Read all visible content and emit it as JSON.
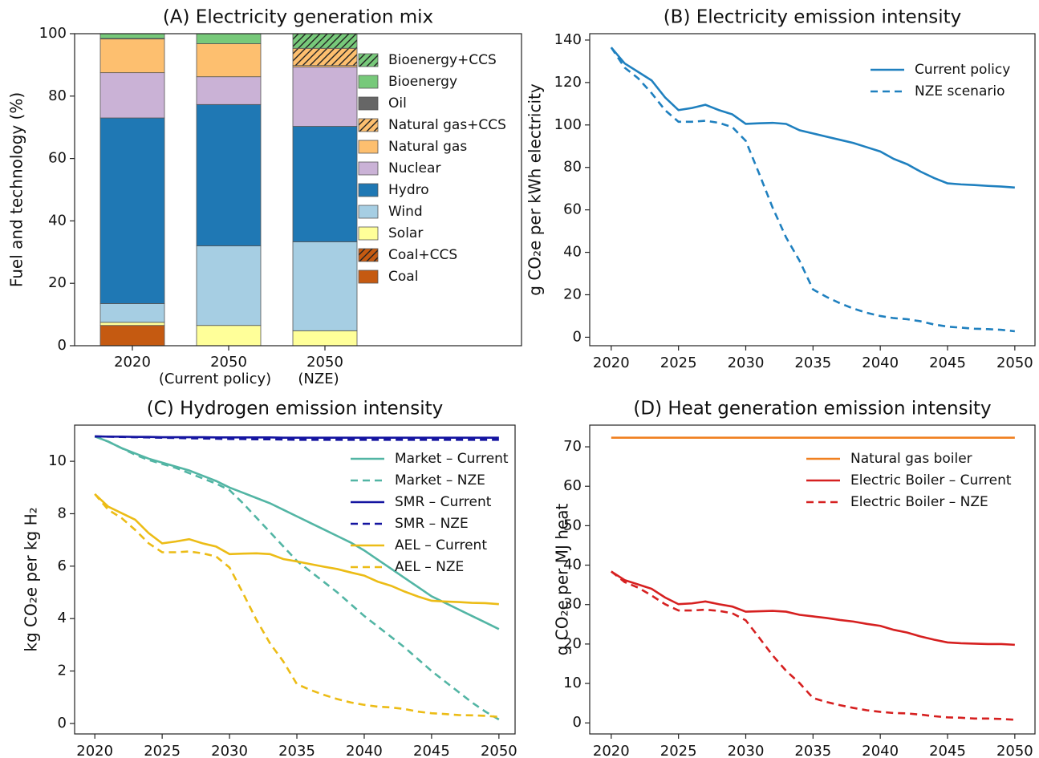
{
  "chart_data": [
    {
      "type": "bar",
      "title": "(A) Electricity generation mix",
      "ylabel": "Fuel and technology (%)",
      "categories": [
        "2020",
        "2050",
        "2050"
      ],
      "category_notes": [
        null,
        "(Current policy)",
        "(NZE)"
      ],
      "ylim": [
        0,
        100
      ],
      "yticks": [
        0,
        20,
        40,
        60,
        80,
        100
      ],
      "series": [
        {
          "name": "Coal",
          "color": "#c55a11",
          "values": [
            6.5,
            0,
            0
          ]
        },
        {
          "name": "Coal+CCS",
          "color": "#c55a11",
          "hatch": "//",
          "values": [
            0,
            0,
            0
          ]
        },
        {
          "name": "Solar",
          "color": "#ffff99",
          "values": [
            1,
            6.5,
            4.8
          ]
        },
        {
          "name": "Wind",
          "color": "#a6cee3",
          "values": [
            6,
            25.5,
            28.5
          ]
        },
        {
          "name": "Hydro",
          "color": "#1f78b4",
          "values": [
            59.5,
            45.3,
            37
          ]
        },
        {
          "name": "Nuclear",
          "color": "#cab2d6",
          "values": [
            14.5,
            8.9,
            19
          ]
        },
        {
          "name": "Natural gas",
          "color": "#fdbf6f",
          "values": [
            10.8,
            10.6,
            0.5
          ]
        },
        {
          "name": "Natural gas+CCS",
          "color": "#fdbf6f",
          "hatch": "//",
          "values": [
            0,
            0,
            5.5
          ]
        },
        {
          "name": "Oil",
          "color": "#666666",
          "values": [
            0.2,
            0,
            0
          ]
        },
        {
          "name": "Bioenergy",
          "color": "#77c97a",
          "values": [
            1.5,
            3.2,
            0
          ]
        },
        {
          "name": "Bioenergy+CCS",
          "color": "#77c97a",
          "hatch": "//",
          "values": [
            0,
            0,
            4.7
          ]
        }
      ]
    },
    {
      "type": "line",
      "title": "(B) Electricity emission intensity",
      "ylabel": "g CO₂e per kWh electricity",
      "x": [
        2020,
        2021,
        2022,
        2023,
        2024,
        2025,
        2026,
        2027,
        2028,
        2029,
        2030,
        2031,
        2032,
        2033,
        2034,
        2035,
        2036,
        2037,
        2038,
        2039,
        2040,
        2041,
        2042,
        2043,
        2044,
        2045,
        2046,
        2047,
        2048,
        2049,
        2050
      ],
      "xlim": [
        2018.4,
        2051.5
      ],
      "xticks": [
        2020,
        2025,
        2030,
        2035,
        2040,
        2045,
        2050
      ],
      "ylim": [
        -4,
        143
      ],
      "yticks": [
        0,
        20,
        40,
        60,
        80,
        100,
        120,
        140
      ],
      "series": [
        {
          "name": "Current policy",
          "color": "#1f80bf",
          "style": "solid",
          "values": [
            136.5,
            129,
            125,
            121,
            113,
            107,
            108,
            109.5,
            107,
            105,
            100.5,
            100.8,
            101,
            100.5,
            97.5,
            96,
            94.5,
            93,
            91.5,
            89.5,
            87.5,
            84,
            81.5,
            78,
            75,
            72.5,
            72,
            71.7,
            71.3,
            71,
            70.5
          ]
        },
        {
          "name": "NZE scenario",
          "color": "#1f80bf",
          "style": "dashed",
          "values": [
            136.5,
            127,
            122,
            115,
            107,
            101.5,
            101.5,
            102,
            101,
            99,
            92.5,
            77,
            61,
            47,
            36,
            22.5,
            19,
            16,
            13.5,
            11.5,
            10,
            9,
            8.5,
            7.5,
            6,
            5,
            4.5,
            4,
            3.8,
            3.5,
            2.8
          ]
        }
      ]
    },
    {
      "type": "line",
      "title": "(C) Hydrogen emission intensity",
      "ylabel": "kg CO₂e per kg H₂",
      "x": [
        2020,
        2021,
        2022,
        2023,
        2024,
        2025,
        2026,
        2027,
        2028,
        2029,
        2030,
        2031,
        2032,
        2033,
        2034,
        2035,
        2036,
        2037,
        2038,
        2039,
        2040,
        2041,
        2042,
        2043,
        2044,
        2045,
        2046,
        2047,
        2048,
        2049,
        2050
      ],
      "xlim": [
        2018.5,
        2051.2
      ],
      "xticks": [
        2020,
        2025,
        2030,
        2035,
        2040,
        2045,
        2050
      ],
      "ylim": [
        -0.4,
        11.38
      ],
      "yticks": [
        0,
        2,
        4,
        6,
        8,
        10
      ],
      "series": [
        {
          "name": "Market – Current",
          "color": "#52b5a4",
          "style": "solid",
          "values": [
            10.95,
            10.75,
            10.5,
            10.3,
            10.1,
            9.95,
            9.8,
            9.65,
            9.45,
            9.25,
            9.0,
            8.8,
            8.6,
            8.4,
            8.15,
            7.9,
            7.65,
            7.4,
            7.15,
            6.9,
            6.6,
            6.25,
            5.9,
            5.55,
            5.2,
            4.85,
            4.6,
            4.35,
            4.1,
            3.85,
            3.6
          ]
        },
        {
          "name": "Market – NZE",
          "color": "#52b5a4",
          "style": "dashed",
          "values": [
            10.95,
            10.75,
            10.5,
            10.25,
            10.05,
            9.9,
            9.75,
            9.55,
            9.35,
            9.15,
            8.9,
            8.4,
            7.85,
            7.3,
            6.75,
            6.2,
            5.8,
            5.4,
            5.0,
            4.55,
            4.1,
            3.7,
            3.3,
            2.9,
            2.45,
            2.0,
            1.6,
            1.2,
            0.8,
            0.45,
            0.15
          ]
        },
        {
          "name": "SMR – Current",
          "color": "#1414a0",
          "style": "solid",
          "values": [
            10.95,
            10.94,
            10.94,
            10.93,
            10.93,
            10.92,
            10.92,
            10.92,
            10.92,
            10.91,
            10.91,
            10.91,
            10.91,
            10.91,
            10.9,
            10.9,
            10.9,
            10.9,
            10.9,
            10.9,
            10.9,
            10.9,
            10.9,
            10.9,
            10.9,
            10.9,
            10.9,
            10.9,
            10.9,
            10.9,
            10.9
          ]
        },
        {
          "name": "SMR – NZE",
          "color": "#1414a0",
          "style": "dashed",
          "values": [
            10.95,
            10.94,
            10.93,
            10.92,
            10.91,
            10.9,
            10.89,
            10.88,
            10.87,
            10.86,
            10.85,
            10.85,
            10.84,
            10.84,
            10.83,
            10.82,
            10.82,
            10.82,
            10.82,
            10.82,
            10.82,
            10.82,
            10.82,
            10.82,
            10.82,
            10.82,
            10.82,
            10.82,
            10.82,
            10.82,
            10.82
          ]
        },
        {
          "name": "AEL – Current",
          "color": "#ecbc16",
          "style": "solid",
          "values": [
            8.75,
            8.27,
            8.02,
            7.77,
            7.26,
            6.87,
            6.94,
            7.03,
            6.87,
            6.75,
            6.46,
            6.48,
            6.49,
            6.46,
            6.27,
            6.18,
            6.08,
            5.98,
            5.89,
            5.76,
            5.64,
            5.41,
            5.25,
            5.03,
            4.84,
            4.68,
            4.65,
            4.63,
            4.6,
            4.59,
            4.55
          ]
        },
        {
          "name": "AEL – NZE",
          "color": "#ecbc16",
          "style": "dashed",
          "values": [
            8.75,
            8.15,
            7.83,
            7.38,
            6.87,
            6.53,
            6.53,
            6.56,
            6.49,
            6.37,
            5.95,
            4.97,
            3.95,
            3.06,
            2.36,
            1.5,
            1.28,
            1.09,
            0.93,
            0.8,
            0.71,
            0.64,
            0.61,
            0.55,
            0.45,
            0.39,
            0.36,
            0.32,
            0.31,
            0.29,
            0.25
          ]
        }
      ]
    },
    {
      "type": "line",
      "title": "(D) Heat generation emission intensity",
      "ylabel": "g CO₂e per MJ heat",
      "x": [
        2020,
        2021,
        2022,
        2023,
        2024,
        2025,
        2026,
        2027,
        2028,
        2029,
        2030,
        2031,
        2032,
        2033,
        2034,
        2035,
        2036,
        2037,
        2038,
        2039,
        2040,
        2041,
        2042,
        2043,
        2044,
        2045,
        2046,
        2047,
        2048,
        2049,
        2050
      ],
      "xlim": [
        2018.4,
        2051.5
      ],
      "xticks": [
        2020,
        2025,
        2030,
        2035,
        2040,
        2045,
        2050
      ],
      "ylim": [
        -2.8,
        75.5
      ],
      "yticks": [
        0,
        10,
        20,
        30,
        40,
        50,
        60,
        70
      ],
      "series": [
        {
          "name": "Natural gas boiler",
          "color": "#f08020",
          "style": "solid",
          "values": [
            72.3,
            72.3,
            72.3,
            72.3,
            72.3,
            72.3,
            72.3,
            72.3,
            72.3,
            72.3,
            72.3,
            72.3,
            72.3,
            72.3,
            72.3,
            72.3,
            72.3,
            72.3,
            72.3,
            72.3,
            72.3,
            72.3,
            72.3,
            72.3,
            72.3,
            72.3,
            72.3,
            72.3,
            72.3,
            72.3,
            72.3
          ]
        },
        {
          "name": "Electric Boiler – Current",
          "color": "#d62020",
          "style": "solid",
          "values": [
            38.4,
            36.2,
            35.1,
            34.0,
            31.8,
            30.1,
            30.3,
            30.8,
            30.1,
            29.5,
            28.2,
            28.3,
            28.4,
            28.2,
            27.4,
            27.0,
            26.6,
            26.1,
            25.7,
            25.1,
            24.6,
            23.6,
            22.9,
            21.9,
            21.1,
            20.4,
            20.2,
            20.1,
            20.0,
            20.0,
            19.8
          ]
        },
        {
          "name": "Electric Boiler – NZE",
          "color": "#d62020",
          "style": "dashed",
          "values": [
            38.4,
            35.7,
            34.3,
            32.3,
            30.1,
            28.5,
            28.5,
            28.7,
            28.4,
            27.8,
            26.0,
            21.6,
            17.1,
            13.2,
            10.1,
            6.3,
            5.3,
            4.5,
            3.8,
            3.2,
            2.8,
            2.5,
            2.4,
            2.1,
            1.7,
            1.4,
            1.3,
            1.1,
            1.1,
            1.0,
            0.8
          ]
        }
      ]
    }
  ]
}
